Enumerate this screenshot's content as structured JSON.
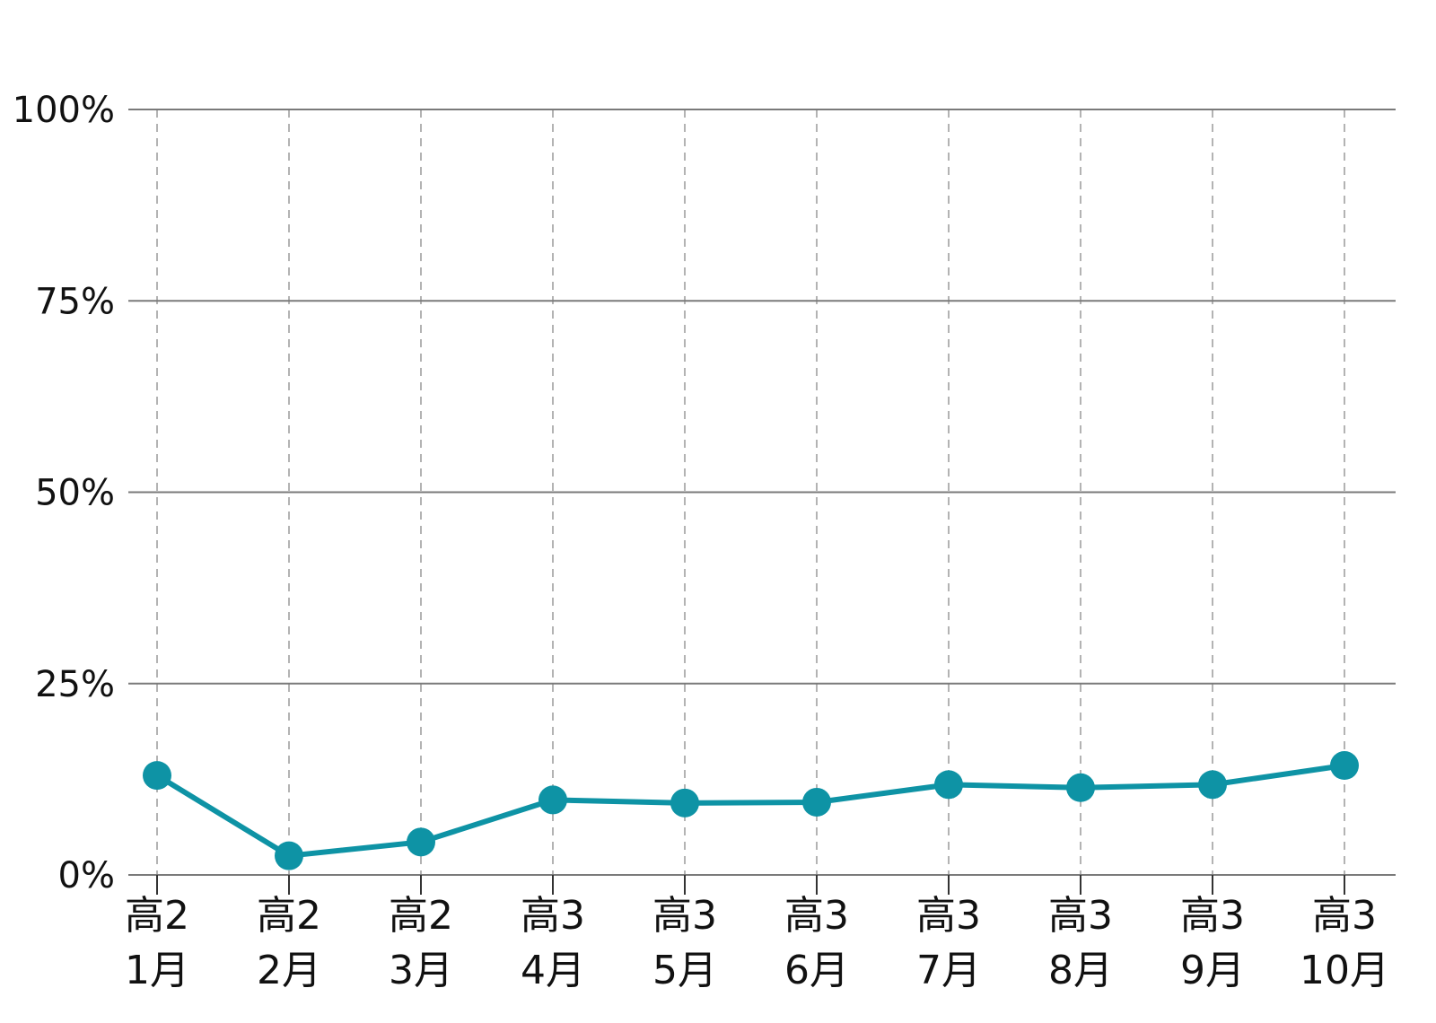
{
  "chart_data": {
    "type": "line",
    "categories": [
      [
        "高2",
        "1月"
      ],
      [
        "高2",
        "2月"
      ],
      [
        "高2",
        "3月"
      ],
      [
        "高3",
        "4月"
      ],
      [
        "高3",
        "5月"
      ],
      [
        "高3",
        "6月"
      ],
      [
        "高3",
        "7月"
      ],
      [
        "高3",
        "8月"
      ],
      [
        "高3",
        "9月"
      ],
      [
        "高3",
        "10月"
      ]
    ],
    "series": [
      {
        "values": [
          13.0,
          2.5,
          4.3,
          9.8,
          9.4,
          9.5,
          11.8,
          11.4,
          11.8,
          14.3
        ]
      }
    ],
    "ylim": [
      0,
      100
    ],
    "yticks": [
      0,
      25,
      50,
      75,
      100
    ],
    "ytick_labels": [
      "0%",
      "25%",
      "50%",
      "75%",
      "100%"
    ],
    "grid": {
      "horizontal": "solid",
      "vertical": "dashed"
    },
    "colors": {
      "series": "#0e93a5",
      "grid": "#7a7a7a",
      "vgrid": "#9a9a9a"
    }
  }
}
